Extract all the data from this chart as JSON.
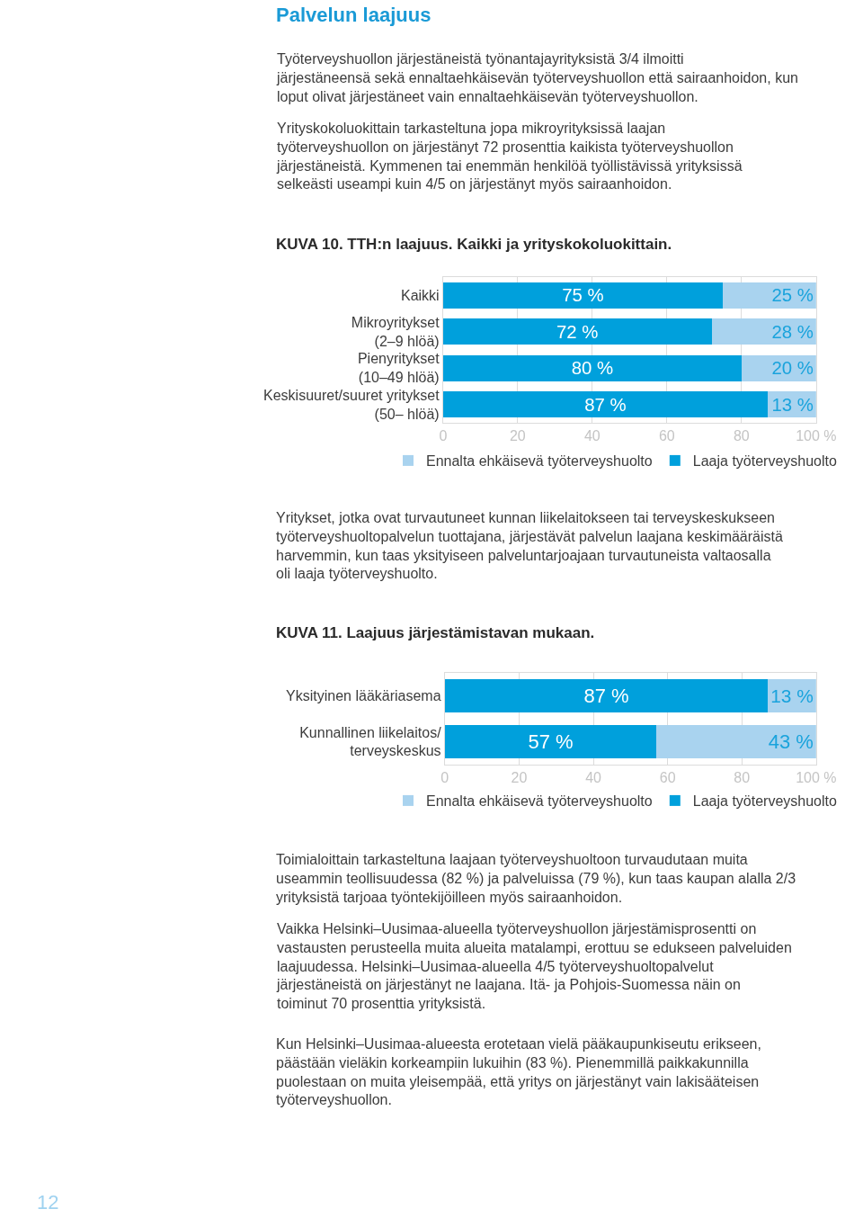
{
  "chart_data": [
    {
      "type": "bar",
      "orientation": "horizontal",
      "stacked": true,
      "title": "KUVA 10. TTH:n laajuus. Kaikki ja yrityskokoluokittain.",
      "categories": [
        "Kaikki",
        "Mikroyritykset\n(2–9 hlöä)",
        "Pienyritykset\n(10–49 hlöä)",
        "Keskisuuret/suuret yritykset\n(50– hlöä)"
      ],
      "series": [
        {
          "name": "Laaja työterveyshuolto",
          "color": "#00a0dc",
          "values": [
            75,
            72,
            80,
            87
          ],
          "value_labels": [
            "75 %",
            "72 %",
            "80 %",
            "87 %"
          ]
        },
        {
          "name": "Ennalta ehkäisevä työterveyshuolto",
          "color": "#a9d3ef",
          "values": [
            25,
            28,
            20,
            13
          ],
          "value_labels": [
            "25 %",
            "28 %",
            "20 %",
            "13 %"
          ]
        }
      ],
      "xlim": [
        0,
        100
      ],
      "xticks": [
        0,
        20,
        40,
        60,
        80,
        {
          "value": 100,
          "label": "100 %"
        }
      ],
      "grid": "x",
      "legend": "bottom",
      "annotations": [
        "Palvelun laajuus",
        "Työterveyshuollon järjestäneistä työnantajayrityksistä 3/4 ilmoitti järjestäneensä sekä ennaltaehkäisevän työterveyshuollon että sairaanhoidon, kun loput olivat järjestäneet vain ennaltaehkäisevän työterveyshuollon.",
        "Yrityskokoluokittain tarkasteltuna jopa mikroyrityksissä laajan työterveyshuollon on järjestänyt 72 prosenttia kaikista työterveyshuollon järjestäneistä. Kymmenen tai enemmän henkilöä työllistävissä yrityksissä selkeästi useampi kuin 4/5 on järjestänyt myös sairaanhoidon."
      ]
    },
    {
      "type": "bar",
      "orientation": "horizontal",
      "stacked": true,
      "title": "KUVA 11. Laajuus järjestämistavan mukaan.",
      "categories": [
        "Yksityinen lääkäriasema",
        "Kunnallinen liikelaitos/\nterveyskeskus"
      ],
      "series": [
        {
          "name": "Laaja työterveyshuolto",
          "color": "#00a0dc",
          "values": [
            87,
            57
          ],
          "value_labels": [
            "87 %",
            "57 %"
          ]
        },
        {
          "name": "Ennalta ehkäisevä työterveyshuolto",
          "color": "#a9d3ef",
          "values": [
            13,
            43
          ],
          "value_labels": [
            "13 %",
            "43 %"
          ]
        }
      ],
      "xlim": [
        0,
        100
      ],
      "xticks": [
        0,
        20,
        40,
        60,
        80,
        {
          "value": 100,
          "label": "100 %"
        }
      ],
      "grid": "x",
      "legend": "bottom",
      "annotations": [
        "Yritykset, jotka ovat turvautuneet kunnan liikelaitokseen tai terveyskeskukseen työterveyshuoltopalvelun tuottajana, järjestävät palvelun laajana keskimääräistä harvemmin, kun taas yksityiseen palveluntarjoajaan turvautuneista valtaosalla oli laaja työterveyshuolto.",
        "Toimialoittain tarkasteltuna laajaan työterveyshuoltoon turvaudutaan muita useammin teollisuudessa (82 %) ja palveluissa (79 %), kun taas kaupan alalla 2/3 yrityksistä tarjoaa työntekijöilleen myös sairaanhoidon.",
        "Vaikka Helsinki–Uusimaa-alueella työterveyshuollon järjestämisprosentti on vastausten perusteella muita alueita matalampi, erottuu se edukseen palveluiden laajuudessa. Helsinki–Uusimaa-alueella 4/5 työterveyshuoltopalvelut järjestäneistä on järjestänyt ne laajana. Itä- ja Pohjois-Suomessa näin on toiminut 70 prosenttia yrityksistä.",
        "Kun Helsinki–Uusimaa-alueesta erotetaan vielä pääkaupunkiseutu erikseen, päästään vieläkin korkeampiin lukuihin (83 %). Pienemmillä paikkakunnilla puolestaan on muita yleisempää, että yritys on järjestänyt vain lakisääteisen työterveyshuollon.",
        "12"
      ]
    }
  ]
}
